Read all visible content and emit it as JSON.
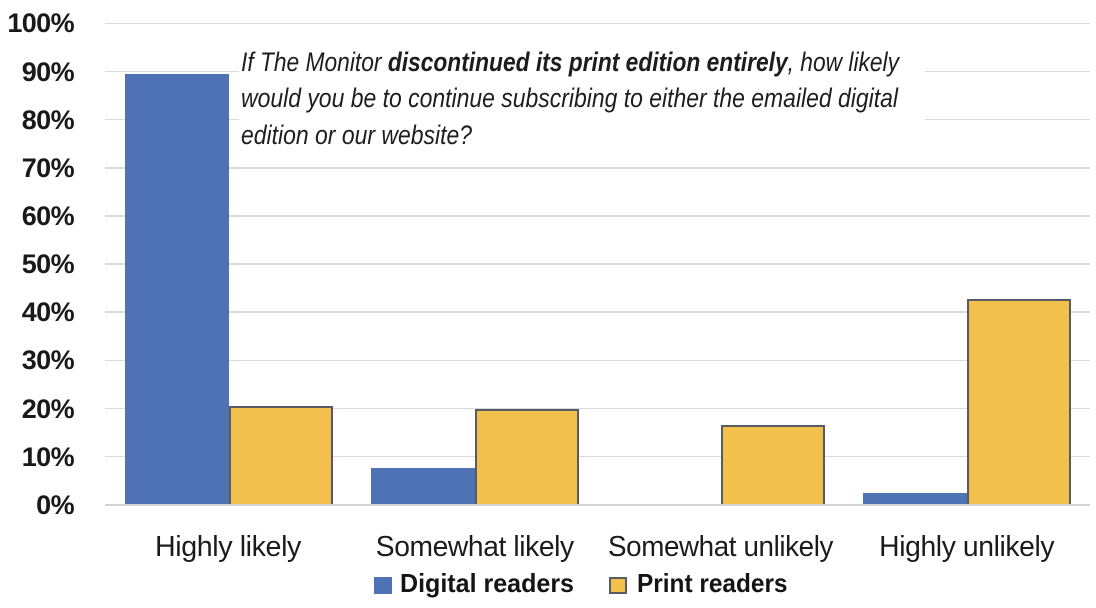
{
  "colors": {
    "digital_blue": "#4f72b5",
    "print_gold": "#f2c04c",
    "print_border_gray": "#5a5a63",
    "gridline_gray": "#d9d9d9",
    "text_black": "#1b1b1b",
    "background": "#ffffff"
  },
  "question": {
    "lines": [
      [
        {
          "text": "If The Monitor ",
          "bold": false
        },
        {
          "text": "discontinued its print edition entirely",
          "bold": true
        },
        {
          "text": ", how likely",
          "bold": false
        }
      ],
      [
        {
          "text": "would you be to continue subscribing to either the emailed digital",
          "bold": false
        }
      ],
      [
        {
          "text": "edition or our website?",
          "bold": false
        }
      ]
    ],
    "full_text": "If The Monitor discontinued its print edition entirely, how likely would you be to continue subscribing to either the emailed digital edition or our website?"
  },
  "chart_data": {
    "type": "bar",
    "title": "If The Monitor discontinued its print edition entirely, how likely would you be to continue subscribing to either the emailed digital edition or our website?",
    "categories": [
      "Highly likely",
      "Somewhat likely",
      "Somewhat unlikely",
      "Highly unlikely"
    ],
    "series": [
      {
        "name": "Digital readers",
        "color": "#4f72b5",
        "values": [
          89.5,
          7.6,
          0,
          2.4
        ]
      },
      {
        "name": "Print readers",
        "color": "#f2c04c",
        "border_color": "#5a5a63",
        "values": [
          20.5,
          20,
          16.6,
          42.8
        ]
      }
    ],
    "xlabel": "",
    "ylabel": "",
    "ylim": [
      0,
      100
    ],
    "ytick_step": 10,
    "ytick_labels": [
      "0%",
      "10%",
      "20%",
      "30%",
      "40%",
      "50%",
      "60%",
      "70%",
      "80%",
      "90%",
      "100%"
    ],
    "grid": true,
    "legend_position": "bottom"
  },
  "legend": {
    "digital_label": "Digital readers",
    "print_label": "Print readers"
  }
}
